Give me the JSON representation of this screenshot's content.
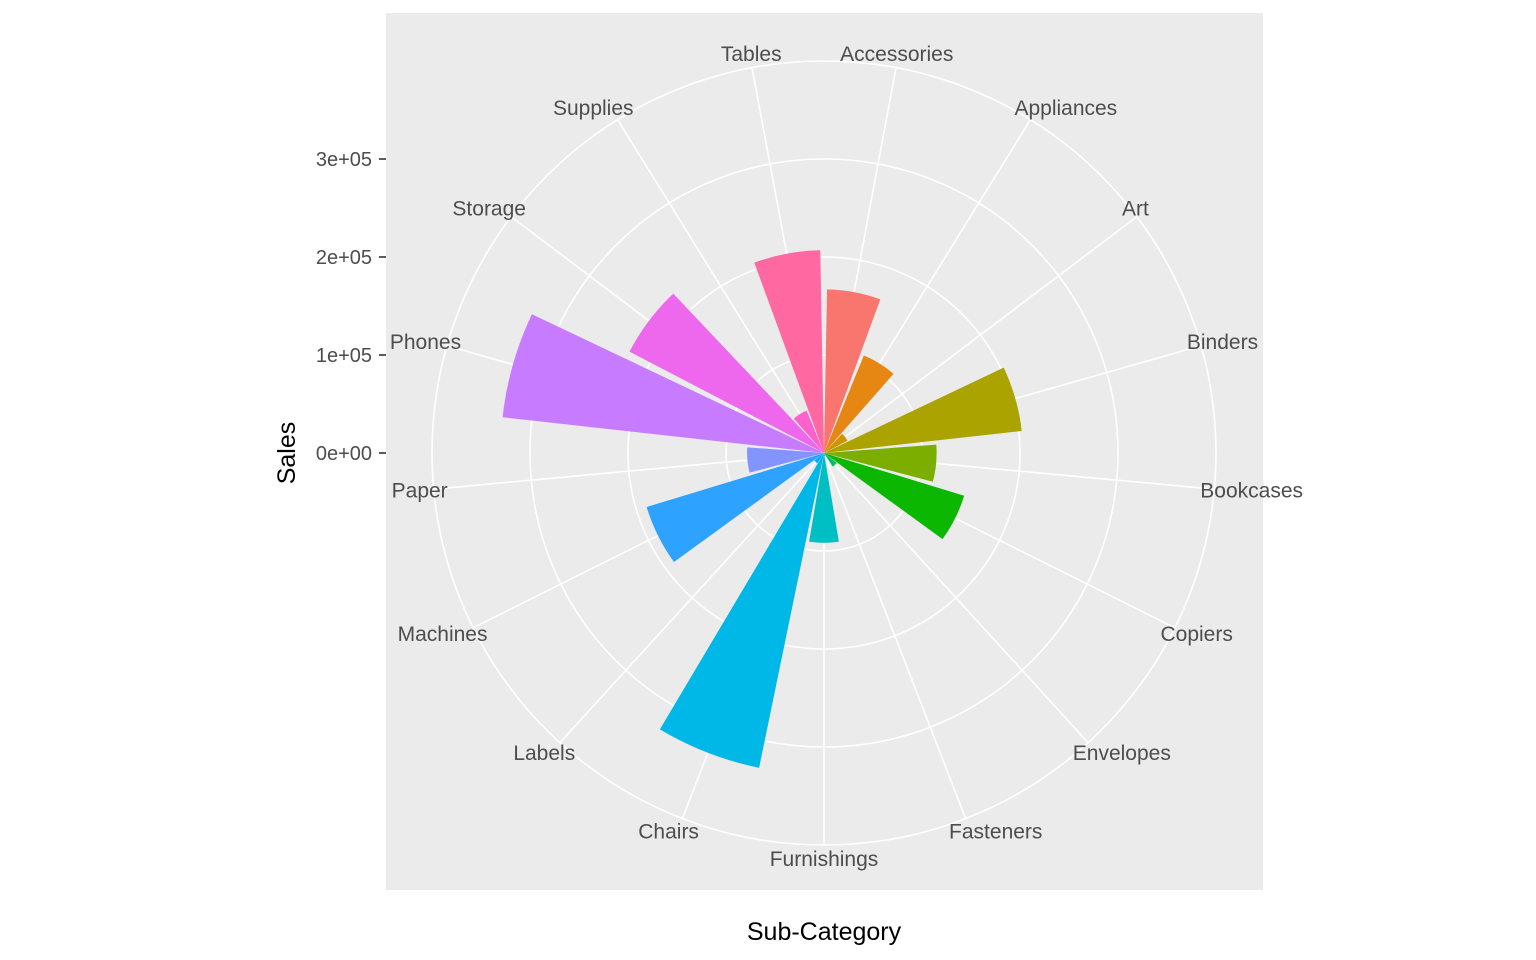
{
  "chart_data": {
    "type": "bar",
    "coord": "polar",
    "xlabel": "Sub-Category",
    "ylabel": "Sales",
    "categories": [
      "Accessories",
      "Appliances",
      "Art",
      "Binders",
      "Bookcases",
      "Copiers",
      "Envelopes",
      "Fasteners",
      "Furnishings",
      "Chairs",
      "Labels",
      "Machines",
      "Paper",
      "Phones",
      "Storage",
      "Supplies",
      "Tables"
    ],
    "values": [
      167000,
      107500,
      27000,
      203000,
      114900,
      149500,
      16500,
      3000,
      91700,
      328000,
      12500,
      189200,
      78500,
      330000,
      223800,
      46700,
      206900
    ],
    "colors": [
      "#F8766D",
      "#E68613",
      "#CD9600",
      "#ABA300",
      "#7CAE00",
      "#0CB702",
      "#00BE67",
      "#00C19A",
      "#00BFC4",
      "#00B8E7",
      "#00A9FF",
      "#2EA2FF",
      "#8494FF",
      "#C77CFF",
      "#ED68ED",
      "#FF61CC",
      "#FF68A1"
    ],
    "yticks": [
      0,
      100000,
      200000,
      300000
    ],
    "ytick_labels": [
      "0e+00",
      "1e+05",
      "2e+05",
      "3e+05"
    ],
    "ylim": [
      0,
      400000
    ],
    "grid": true,
    "legend": "none"
  }
}
